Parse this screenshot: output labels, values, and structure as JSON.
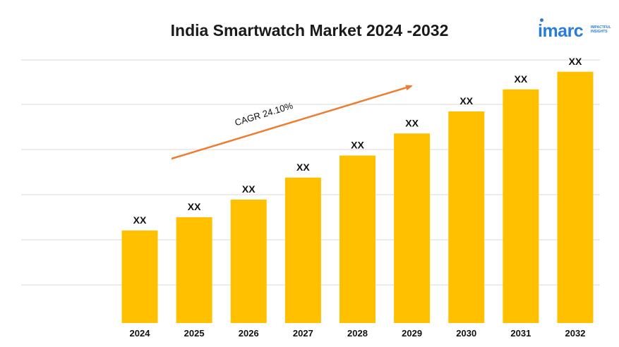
{
  "logo": {
    "word": "imarc",
    "tagline_1": "IMPACTFUL",
    "tagline_2": "INSIGHTS",
    "color": "#2a7dd6"
  },
  "chart_data": {
    "type": "bar",
    "title": "India Smartwatch Market 2024 -2032",
    "xlabel": "",
    "ylabel": "",
    "categories": [
      "2024",
      "2025",
      "2026",
      "2027",
      "2028",
      "2029",
      "2030",
      "2031",
      "2032"
    ],
    "values": [
      42,
      48,
      56,
      66,
      76,
      86,
      96,
      106,
      114
    ],
    "value_labels": [
      "XX",
      "XX",
      "XX",
      "XX",
      "XX",
      "XX",
      "XX",
      "XX",
      "XX"
    ],
    "ylim": [
      0,
      120
    ],
    "grid": "horizontal",
    "y_axis_ticks_shown": false,
    "bar_color": "#FFC000",
    "gridline_color": "#d9d9d9",
    "annotation": {
      "text": "CAGR 24.10%",
      "arrow_color": "#ED7D31"
    }
  }
}
